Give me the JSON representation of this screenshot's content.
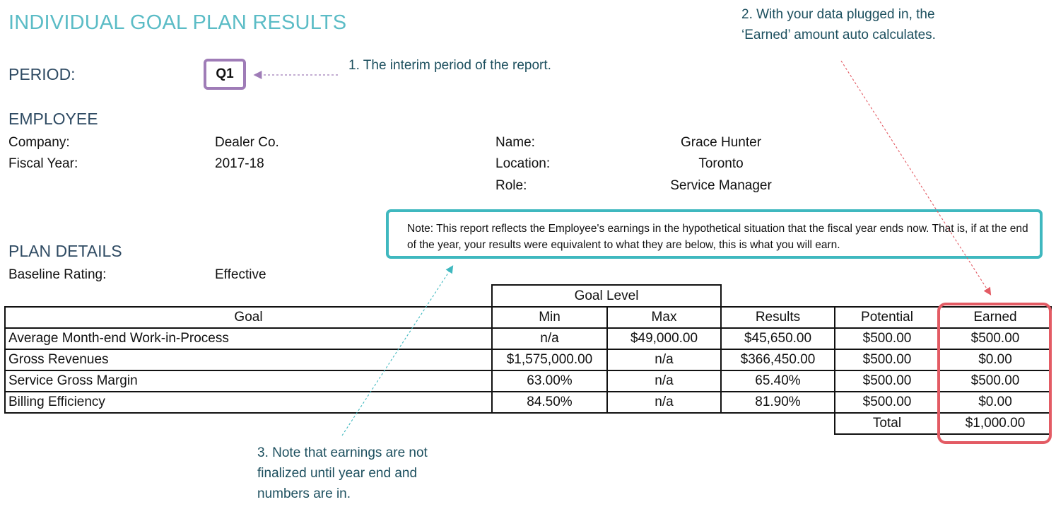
{
  "report": {
    "title": "INDIVIDUAL GOAL PLAN RESULTS",
    "period_label": "PERIOD:",
    "period_value": "Q1"
  },
  "employee": {
    "section_title": "EMPLOYEE",
    "company_label": "Company:",
    "company_value": "Dealer Co.",
    "fiscal_year_label": "Fiscal Year:",
    "fiscal_year_value": "2017-18",
    "name_label": "Name:",
    "name_value": "Grace Hunter",
    "location_label": "Location:",
    "location_value": "Toronto",
    "role_label": "Role:",
    "role_value": "Service Manager"
  },
  "plan": {
    "section_title": "PLAN DETAILS",
    "baseline_label": "Baseline Rating:",
    "baseline_value": "Effective"
  },
  "note": "Note: This report reflects the Employee's earnings in the hypothetical situation that the fiscal year ends now. That is, if at the end of the year, your results were equivalent to what they are below, this is what you will earn.",
  "callouts": {
    "one": "1. The interim period of the report.",
    "two": "2. With your data plugged in, the ‘Earned’ amount auto calculates.",
    "three": "3. Note that earnings are not finalized until year end and numbers are in."
  },
  "table": {
    "goal_level_header": "Goal Level",
    "columns": {
      "goal": "Goal",
      "min": "Min",
      "max": "Max",
      "results": "Results",
      "potential": "Potential",
      "earned": "Earned"
    },
    "rows": [
      {
        "goal": "Average Month-end Work-in-Process",
        "min": "n/a",
        "max": "$49,000.00",
        "results": "$45,650.00",
        "potential": "$500.00",
        "earned": "$500.00"
      },
      {
        "goal": "Gross Revenues",
        "min": "$1,575,000.00",
        "max": "n/a",
        "results": "$366,450.00",
        "potential": "$500.00",
        "earned": "$0.00"
      },
      {
        "goal": "Service Gross Margin",
        "min": "63.00%",
        "max": "n/a",
        "results": "65.40%",
        "potential": "$500.00",
        "earned": "$500.00"
      },
      {
        "goal": "Billing Efficiency",
        "min": "84.50%",
        "max": "n/a",
        "results": "81.90%",
        "potential": "$500.00",
        "earned": "$0.00"
      }
    ],
    "total_label": "Total",
    "total_value": "$1,000.00"
  },
  "colors": {
    "title": "#5bbcc6",
    "period_box": "#9f7cb7",
    "note_box": "#3fb8bf",
    "earned_box": "#e35b64",
    "callout_text": "#1c4f5e"
  }
}
